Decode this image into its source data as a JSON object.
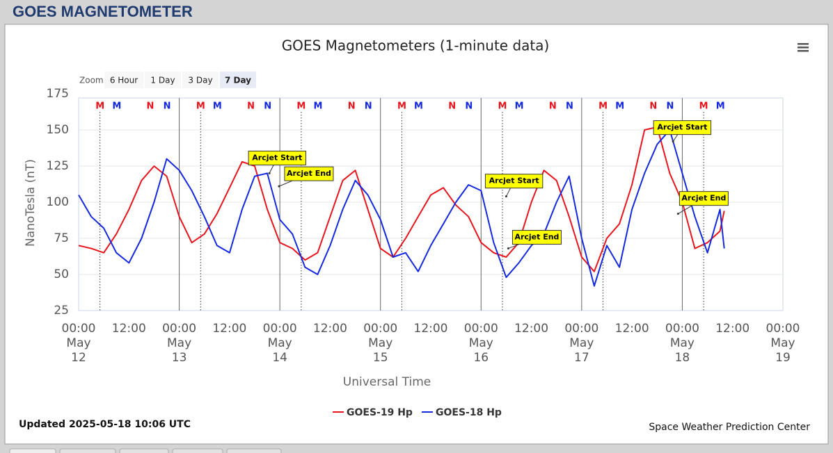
{
  "page_title": "GOES MAGNETOMETER",
  "zoom": {
    "label": "Zoom",
    "buttons": [
      "6 Hour",
      "1 Day",
      "3 Day",
      "7 Day"
    ],
    "selected": "7 Day"
  },
  "updated": "Updated 2025-05-18 10:06 UTC",
  "credit": "Space Weather Prediction Center",
  "chart_data": {
    "type": "line",
    "title": "GOES Magnetometers (1-minute data)",
    "x_label": "Universal Time",
    "y_label": "NanoTesla (nT)",
    "xlim": [
      "May 12 00:00",
      "May 19 00:00"
    ],
    "xticks": [
      {
        "value": "May 12 00:00",
        "label": [
          "00:00",
          "May",
          "12"
        ]
      },
      {
        "value": "May 12 12:00",
        "label": "12:00"
      },
      {
        "value": "May 13 00:00",
        "label": [
          "00:00",
          "May",
          "13"
        ]
      },
      {
        "value": "May 13 12:00",
        "label": "12:00"
      },
      {
        "value": "May 14 00:00",
        "label": [
          "00:00",
          "May",
          "14"
        ]
      },
      {
        "value": "May 14 12:00",
        "label": "12:00"
      },
      {
        "value": "May 15 00:00",
        "label": [
          "00:00",
          "May",
          "15"
        ]
      },
      {
        "value": "May 15 12:00",
        "label": "12:00"
      },
      {
        "value": "May 16 00:00",
        "label": [
          "00:00",
          "May",
          "16"
        ]
      },
      {
        "value": "May 16 12:00",
        "label": "12:00"
      },
      {
        "value": "May 17 00:00",
        "label": [
          "00:00",
          "May",
          "17"
        ]
      },
      {
        "value": "May 17 12:00",
        "label": "12:00"
      },
      {
        "value": "May 18 00:00",
        "label": [
          "00:00",
          "May",
          "18"
        ]
      },
      {
        "value": "May 18 12:00",
        "label": "12:00"
      },
      {
        "value": "May 19 00:00",
        "label": [
          "00:00",
          "May",
          "19"
        ]
      }
    ],
    "ylim": [
      25,
      175
    ],
    "yticks": [
      25,
      50,
      75,
      100,
      125,
      150,
      175
    ],
    "grid": true,
    "x": [
      "May 12 00:00",
      "May 12 03:00",
      "May 12 06:00",
      "May 12 09:00",
      "May 12 12:00",
      "May 12 15:00",
      "May 12 18:00",
      "May 12 21:00",
      "May 13 00:00",
      "May 13 03:00",
      "May 13 06:00",
      "May 13 09:00",
      "May 13 12:00",
      "May 13 15:00",
      "May 13 18:00",
      "May 13 21:00",
      "May 14 00:00",
      "May 14 03:00",
      "May 14 06:00",
      "May 14 09:00",
      "May 14 12:00",
      "May 14 15:00",
      "May 14 18:00",
      "May 14 21:00",
      "May 15 00:00",
      "May 15 03:00",
      "May 15 06:00",
      "May 15 09:00",
      "May 15 12:00",
      "May 15 15:00",
      "May 15 18:00",
      "May 15 21:00",
      "May 16 00:00",
      "May 16 03:00",
      "May 16 06:00",
      "May 16 09:00",
      "May 16 12:00",
      "May 16 15:00",
      "May 16 18:00",
      "May 16 21:00",
      "May 17 00:00",
      "May 17 03:00",
      "May 17 06:00",
      "May 17 09:00",
      "May 17 12:00",
      "May 17 15:00",
      "May 17 18:00",
      "May 17 21:00",
      "May 18 00:00",
      "May 18 03:00",
      "May 18 06:00",
      "May 18 09:00",
      "May 18 10:00"
    ],
    "series": [
      {
        "name": "GOES-19 Hp",
        "color": "#e8141c",
        "values": [
          70,
          68,
          65,
          78,
          95,
          115,
          125,
          118,
          90,
          72,
          78,
          92,
          110,
          128,
          125,
          95,
          72,
          68,
          60,
          65,
          90,
          115,
          122,
          95,
          68,
          62,
          75,
          90,
          105,
          110,
          98,
          90,
          72,
          65,
          62,
          72,
          100,
          122,
          115,
          90,
          62,
          52,
          75,
          85,
          112,
          150,
          152,
          120,
          100,
          68,
          72,
          80,
          94
        ]
      },
      {
        "name": "GOES-18 Hp",
        "color": "#1428e0",
        "values": [
          105,
          90,
          82,
          65,
          58,
          75,
          100,
          130,
          122,
          108,
          90,
          70,
          65,
          95,
          118,
          120,
          88,
          78,
          55,
          50,
          70,
          95,
          115,
          105,
          88,
          62,
          65,
          52,
          70,
          85,
          100,
          112,
          108,
          72,
          48,
          58,
          70,
          78,
          100,
          118,
          75,
          42,
          70,
          55,
          95,
          120,
          140,
          150,
          120,
          90,
          65,
          95,
          68
        ]
      }
    ],
    "markers": [
      {
        "label": "M",
        "color": "#e8141c",
        "x": "May 12 05:06"
      },
      {
        "label": "M",
        "color": "#1428e0",
        "x": "May 12 09:06"
      },
      {
        "label": "N",
        "color": "#e8141c",
        "x": "May 12 17:06"
      },
      {
        "label": "N",
        "color": "#1428e0",
        "x": "May 12 21:06"
      },
      {
        "label": "M",
        "color": "#e8141c",
        "x": "May 13 05:06"
      },
      {
        "label": "M",
        "color": "#1428e0",
        "x": "May 13 09:06"
      },
      {
        "label": "N",
        "color": "#e8141c",
        "x": "May 13 17:06"
      },
      {
        "label": "N",
        "color": "#1428e0",
        "x": "May 13 21:06"
      },
      {
        "label": "M",
        "color": "#e8141c",
        "x": "May 14 05:06"
      },
      {
        "label": "M",
        "color": "#1428e0",
        "x": "May 14 09:06"
      },
      {
        "label": "N",
        "color": "#e8141c",
        "x": "May 14 17:06"
      },
      {
        "label": "N",
        "color": "#1428e0",
        "x": "May 14 21:06"
      },
      {
        "label": "M",
        "color": "#e8141c",
        "x": "May 15 05:06"
      },
      {
        "label": "M",
        "color": "#1428e0",
        "x": "May 15 09:06"
      },
      {
        "label": "N",
        "color": "#e8141c",
        "x": "May 15 17:06"
      },
      {
        "label": "N",
        "color": "#1428e0",
        "x": "May 15 21:06"
      },
      {
        "label": "M",
        "color": "#e8141c",
        "x": "May 16 05:06"
      },
      {
        "label": "M",
        "color": "#1428e0",
        "x": "May 16 09:06"
      },
      {
        "label": "N",
        "color": "#e8141c",
        "x": "May 16 17:06"
      },
      {
        "label": "N",
        "color": "#1428e0",
        "x": "May 16 21:06"
      },
      {
        "label": "M",
        "color": "#e8141c",
        "x": "May 17 05:06"
      },
      {
        "label": "M",
        "color": "#1428e0",
        "x": "May 17 09:06"
      },
      {
        "label": "N",
        "color": "#e8141c",
        "x": "May 17 17:06"
      },
      {
        "label": "N",
        "color": "#1428e0",
        "x": "May 17 21:06"
      },
      {
        "label": "M",
        "color": "#e8141c",
        "x": "May 18 05:06"
      },
      {
        "label": "M",
        "color": "#1428e0",
        "x": "May 18 09:06"
      }
    ],
    "annotations": [
      {
        "text": "Arcjet Start",
        "x": "May 13 21:30",
        "y": 120
      },
      {
        "text": "Arcjet End",
        "x": "May 13 23:48",
        "y": 111
      },
      {
        "text": "Arcjet Start",
        "x": "May 16 06:00",
        "y": 104
      },
      {
        "text": "Arcjet End",
        "x": "May 16 06:30",
        "y": 68
      },
      {
        "text": "Arcjet Start",
        "x": "May 17 21:48",
        "y": 142
      },
      {
        "text": "Arcjet End",
        "x": "May 17 23:00",
        "y": 92
      }
    ]
  }
}
